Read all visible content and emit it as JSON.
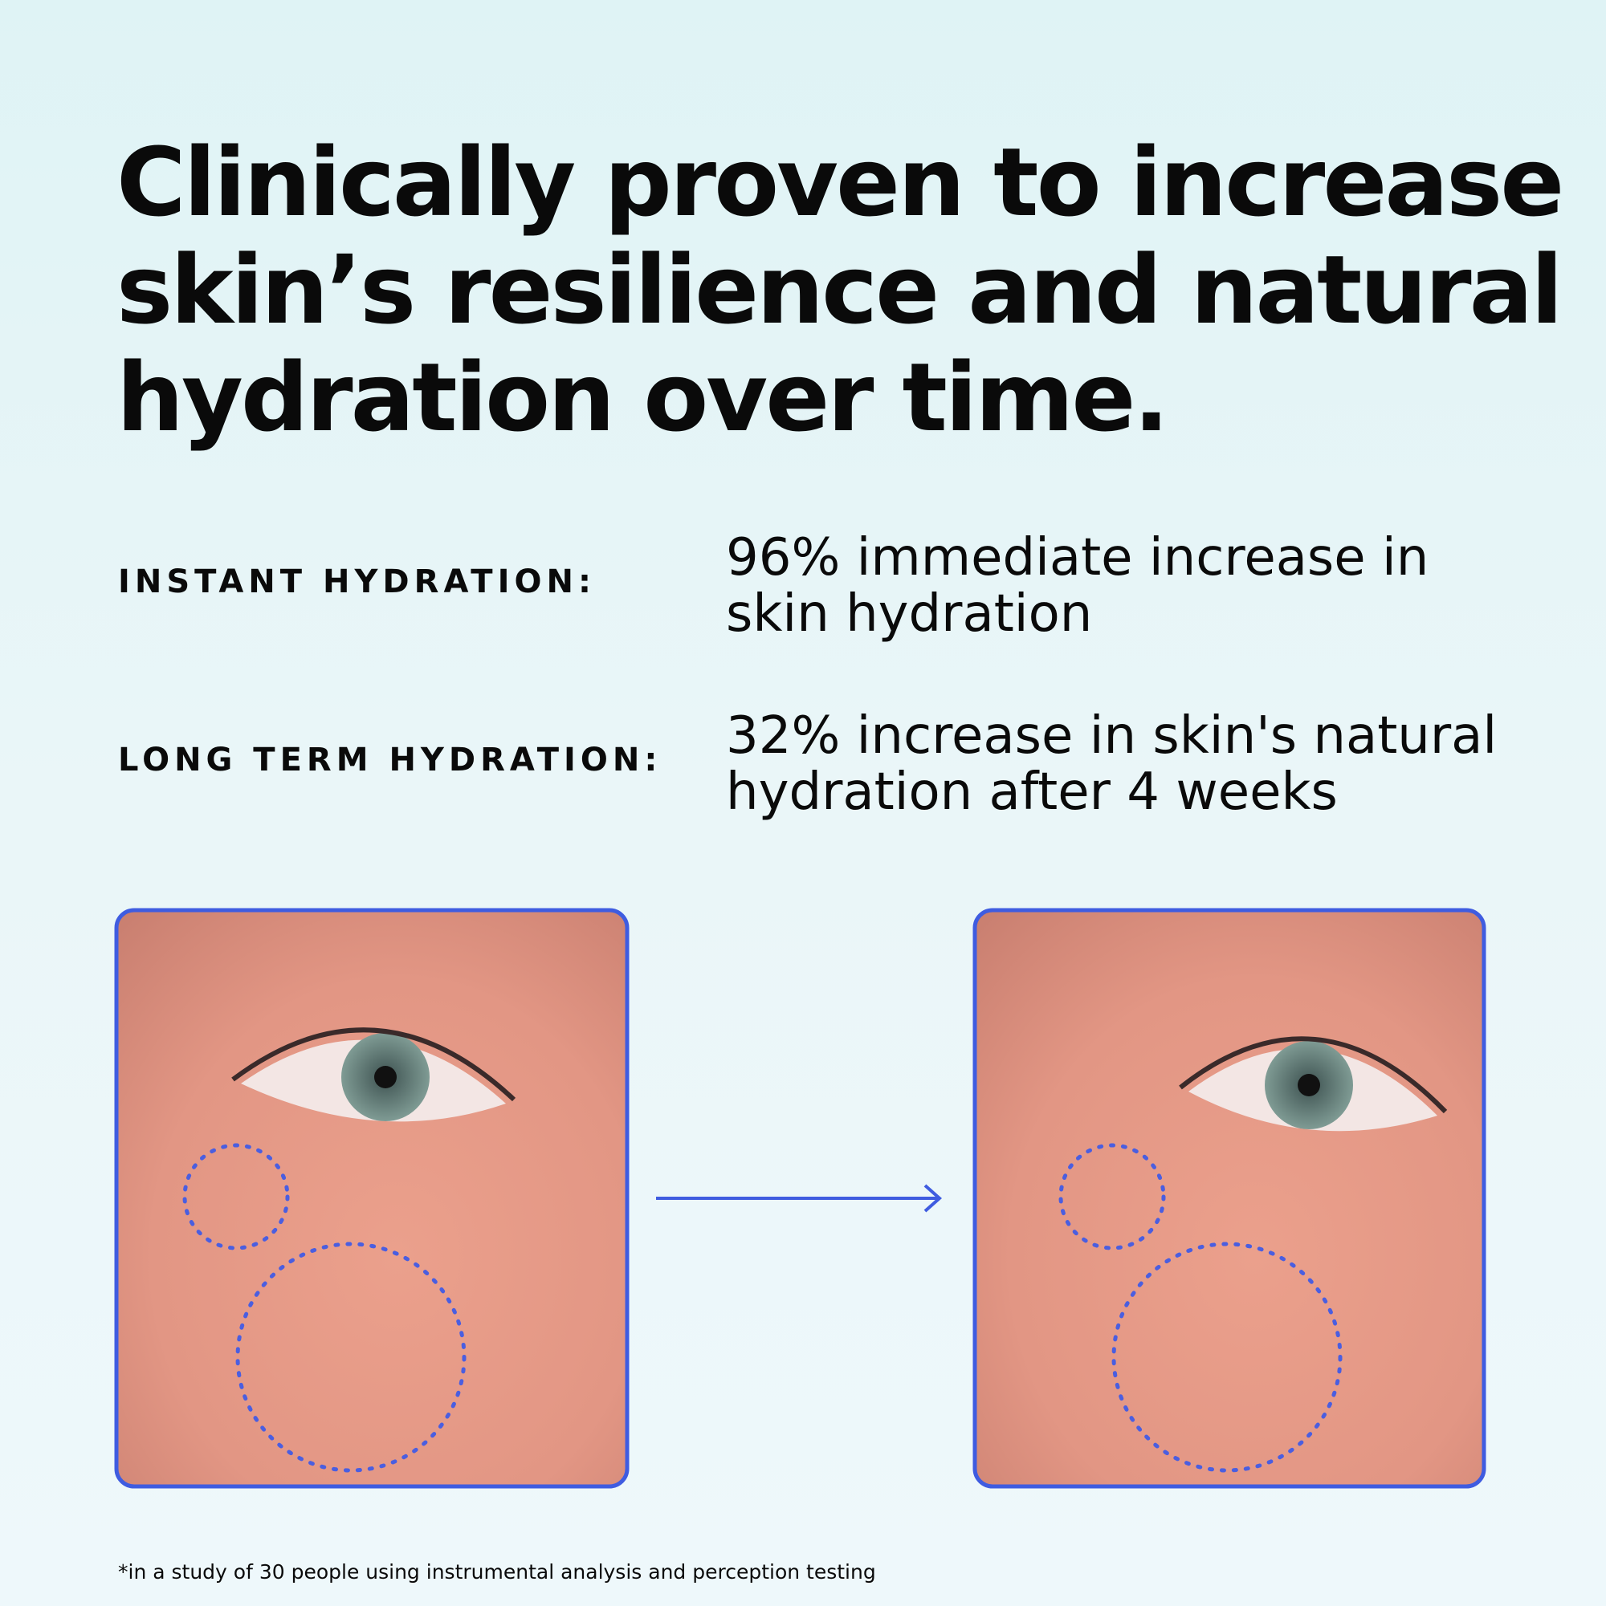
{
  "headline": {
    "lines": [
      "Clinically proven to increase",
      "skin’s resilience and natural",
      "hydration over time."
    ]
  },
  "stats": [
    {
      "label": "INSTANT HYDRATION:",
      "lines": [
        "96% immediate increase in",
        "skin hydration"
      ]
    },
    {
      "label": "LONG TERM HYDRATION:",
      "lines": [
        "32% increase in skin's natural",
        "hydration after 4 weeks"
      ]
    }
  ],
  "footnote": "*in a study of 30 people using instrumental analysis and perception testing"
}
